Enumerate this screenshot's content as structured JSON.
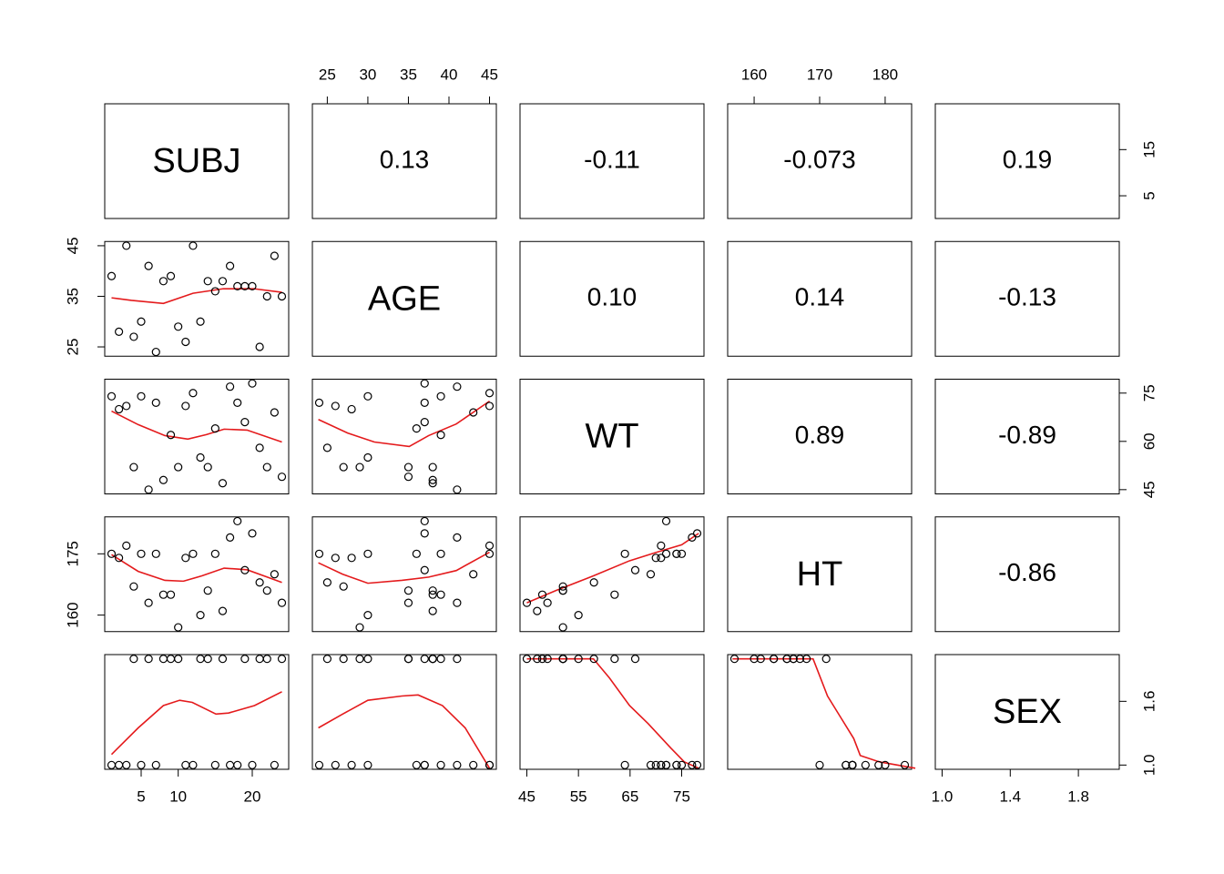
{
  "chart_data": {
    "type": "pairs",
    "variables": [
      {
        "name": "SUBJ",
        "values": [
          1,
          2,
          3,
          4,
          5,
          6,
          7,
          8,
          9,
          10,
          11,
          12,
          13,
          14,
          15,
          16,
          17,
          18,
          19,
          20,
          21,
          22,
          23,
          24
        ],
        "lim": [
          0.08,
          24.92
        ],
        "xticks": [
          5,
          10,
          20
        ],
        "yticks": [
          5,
          15
        ]
      },
      {
        "name": "AGE",
        "values": [
          39,
          28,
          45,
          27,
          30,
          41,
          24,
          38,
          39,
          29,
          26,
          45,
          30,
          38,
          36,
          38,
          41,
          37,
          37,
          37,
          25,
          35,
          43,
          35
        ],
        "lim": [
          23.16,
          45.84
        ],
        "xticks": [
          25,
          30,
          35,
          40,
          45
        ],
        "yticks": [
          25,
          35,
          45
        ]
      },
      {
        "name": "WT",
        "values": [
          74,
          70,
          71,
          52,
          74,
          45,
          72,
          48,
          62,
          52,
          71,
          75,
          55,
          52,
          64,
          47,
          77,
          72,
          66,
          78,
          58,
          52,
          69,
          49
        ],
        "lim": [
          43.68,
          79.32
        ],
        "xticks": [
          45,
          55,
          65,
          75
        ],
        "yticks": [
          45,
          60,
          75
        ]
      },
      {
        "name": "HT",
        "values": [
          175,
          174,
          177,
          167,
          175,
          163,
          175,
          165,
          165,
          157,
          174,
          175,
          160,
          166,
          175,
          161,
          179,
          183,
          171,
          180,
          168,
          166,
          170,
          163
        ],
        "lim": [
          155.96,
          184.04
        ],
        "xticks": [
          160,
          170,
          180
        ],
        "yticks": [
          160,
          175
        ]
      },
      {
        "name": "SEX",
        "values": [
          1,
          1,
          1,
          2,
          1,
          2,
          1,
          2,
          2,
          2,
          1,
          1,
          2,
          2,
          1,
          2,
          1,
          1,
          2,
          1,
          2,
          2,
          1,
          2
        ],
        "lim": [
          0.96,
          2.04
        ],
        "xticks": [
          {
            "value": 1,
            "label": "1.0"
          },
          {
            "value": 1.4,
            "label": "1.4"
          },
          {
            "value": 1.8,
            "label": "1.8"
          }
        ],
        "yticks": [
          {
            "value": 1,
            "label": "1.0"
          },
          {
            "value": 1.6,
            "label": "1.6"
          }
        ]
      }
    ],
    "correlation_labels": [
      [
        null,
        "0.13",
        "-0.11",
        "-0.073",
        "0.19"
      ],
      [
        null,
        null,
        "0.10",
        "0.14",
        "-0.13"
      ],
      [
        null,
        null,
        null,
        "0.89",
        "-0.89"
      ],
      [
        null,
        null,
        null,
        null,
        "-0.86"
      ],
      [
        null,
        null,
        null,
        null,
        null
      ]
    ],
    "smooth_color": "#e41a1c",
    "smooths": [
      [
        null,
        null,
        null,
        null,
        null
      ],
      [
        {
          "x": [
            1,
            3.7,
            8,
            12,
            16.1,
            20.2,
            24
          ],
          "y": [
            34.7,
            34.2,
            33.6,
            35.6,
            36.5,
            36.5,
            35.8
          ]
        },
        null,
        null,
        null,
        null
      ],
      [
        {
          "x": [
            1,
            4.6,
            8.2,
            11.3,
            13.8,
            16.2,
            19.3,
            24
          ],
          "y": [
            69.4,
            65.2,
            61.8,
            60.7,
            62.1,
            63.8,
            63.5,
            59.8
          ]
        },
        {
          "x": [
            23.9,
            27.5,
            30.8,
            35.1,
            37.5,
            40.9,
            45
          ],
          "y": [
            66.8,
            62.6,
            59.8,
            58.4,
            61.8,
            65.4,
            72.5
          ]
        },
        null,
        null,
        null
      ],
      [
        {
          "x": [
            1,
            4.6,
            8.2,
            10.7,
            13.2,
            16.2,
            19.3,
            24
          ],
          "y": [
            174.8,
            170.7,
            168.5,
            168.3,
            169.6,
            171.5,
            171.1,
            168
          ]
        },
        {
          "x": [
            23.9,
            26.9,
            30,
            34.2,
            37.5,
            40.9,
            45
          ],
          "y": [
            172.8,
            170,
            167.8,
            168.5,
            169.3,
            170.9,
            175.4
          ]
        },
        {
          "x": [
            45,
            50.8,
            57.9,
            64.9,
            70.2,
            75,
            78.3
          ],
          "y": [
            163,
            166.1,
            169.6,
            173.3,
            175.4,
            177.2,
            180
          ]
        },
        null,
        null
      ],
      [
        {
          "x": [
            1,
            4.6,
            8,
            10.2,
            11.9,
            15.1,
            16.8,
            20.3,
            24
          ],
          "y": [
            1.1,
            1.35,
            1.56,
            1.61,
            1.59,
            1.48,
            1.49,
            1.56,
            1.69
          ]
        },
        {
          "x": [
            23.9,
            26.9,
            30,
            34.2,
            36.2,
            39.2,
            42,
            45
          ],
          "y": [
            1.35,
            1.48,
            1.61,
            1.65,
            1.66,
            1.56,
            1.35,
            0.97
          ]
        },
        {
          "x": [
            45,
            57.9,
            61,
            64.9,
            68.5,
            72.9,
            75.5,
            78.3
          ],
          "y": [
            2,
            2,
            1.82,
            1.56,
            1.39,
            1.16,
            1.03,
            0.97
          ]
        },
        {
          "x": [
            156.7,
            169,
            171.2,
            173.3,
            175.2,
            176.2,
            179.1,
            184.6
          ],
          "y": [
            2,
            2,
            1.65,
            1.44,
            1.25,
            1.09,
            1.03,
            0.97
          ]
        },
        null
      ]
    ]
  }
}
